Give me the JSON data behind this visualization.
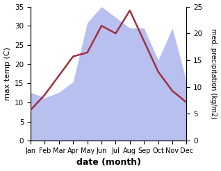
{
  "months": [
    "Jan",
    "Feb",
    "Mar",
    "Apr",
    "May",
    "Jun",
    "Jul",
    "Aug",
    "Sep",
    "Oct",
    "Nov",
    "Dec"
  ],
  "month_indices": [
    0,
    1,
    2,
    3,
    4,
    5,
    6,
    7,
    8,
    9,
    10,
    11
  ],
  "temperature": [
    8,
    12,
    17,
    22,
    23,
    30,
    28,
    34,
    26,
    18,
    13,
    10
  ],
  "precipitation": [
    9,
    8,
    9,
    11,
    22,
    25,
    23,
    21,
    21,
    15,
    21,
    11
  ],
  "temp_ylim": [
    0,
    35
  ],
  "precip_ylim": [
    0,
    25
  ],
  "temp_color": "#a03040",
  "precip_fill_color": "#b8c0f0",
  "xlabel": "date (month)",
  "ylabel_left": "max temp (C)",
  "ylabel_right": "med. precipitation (kg/m2)",
  "figsize": [
    3.18,
    2.47
  ],
  "dpi": 100,
  "bg_color": "#ffffff"
}
